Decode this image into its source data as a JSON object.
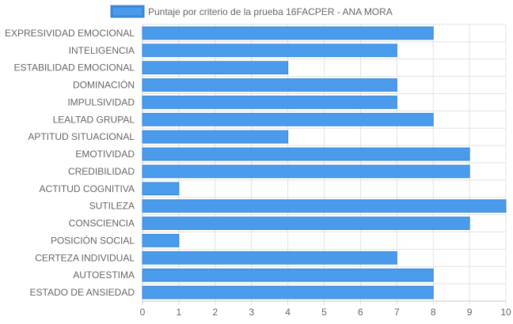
{
  "chart_data": {
    "type": "bar",
    "orientation": "horizontal",
    "categories": [
      "EXPRESIVIDAD EMOCIONAL",
      "INTELIGENCIA",
      "ESTABILIDAD EMOCIONAL",
      "DOMINACIÓN",
      "IMPULSIVIDAD",
      "LEALTAD GRUPAL",
      "APTITUD SITUACIONAL",
      "EMOTIVIDAD",
      "CREDIBILIDAD",
      "ACTITUD COGNITIVA",
      "SUTILEZA",
      "CONSCIENCIA",
      "POSICIÓN SOCIAL",
      "CERTEZA INDIVIDUAL",
      "AUTOESTIMA",
      "ESTADO DE ANSIEDAD"
    ],
    "series": [
      {
        "name": "Puntaje por criterio de la prueba 16FACPER - ANA MORA",
        "values": [
          8,
          7,
          4,
          7,
          7,
          8,
          4,
          9,
          9,
          1,
          10,
          9,
          1,
          7,
          8,
          8
        ]
      }
    ],
    "xlim": [
      0,
      10
    ],
    "xticks": [
      "0",
      "1",
      "2",
      "3",
      "4",
      "5",
      "6",
      "7",
      "8",
      "9",
      "10"
    ],
    "grid": true,
    "legend_position": "top-center",
    "colors": {
      "bar_fill": "#4a9beb",
      "bar_stroke": "#3a86d6",
      "grid": "#e3e3e3",
      "axis": "#c8c8c8"
    }
  }
}
